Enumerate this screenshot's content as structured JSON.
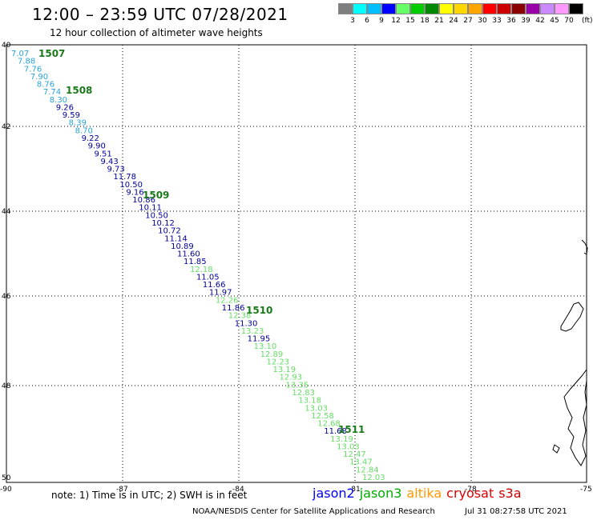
{
  "header": {
    "title": "12:00 – 23:59 UTC 07/28/2021",
    "subtitle": "12 hour collection of altimeter wave heights"
  },
  "colorbar": {
    "colors": [
      "#7f7f7f",
      "#00ffff",
      "#00bfff",
      "#0000ff",
      "#66ff66",
      "#00cc00",
      "#008800",
      "#ffff00",
      "#ffd700",
      "#ffa500",
      "#ff0000",
      "#cc0000",
      "#8b0000",
      "#9900aa",
      "#cc88ff",
      "#ff99ff",
      "#000000"
    ],
    "labels": [
      "3",
      "6",
      "9",
      "12",
      "15",
      "18",
      "21",
      "24",
      "27",
      "30",
      "33",
      "36",
      "39",
      "42",
      "45",
      "70"
    ],
    "unit": "(ft)"
  },
  "map": {
    "lon_ticks": [
      "-90",
      "-87",
      "-84",
      "-81",
      "-78",
      "-75"
    ],
    "lat_ticks": [
      "40",
      "42",
      "44",
      "46",
      "48",
      "50"
    ],
    "pass_labels": [
      "1507",
      "1508",
      "1509",
      "1510",
      "1511"
    ],
    "observations": [
      {
        "v": "7.07",
        "c": "#29a3d6"
      },
      {
        "v": "7.88",
        "c": "#29a3d6"
      },
      {
        "v": "7.76",
        "c": "#29a3d6"
      },
      {
        "v": "7.90",
        "c": "#29a3d6"
      },
      {
        "v": "8.76",
        "c": "#29a3d6"
      },
      {
        "v": "7.74",
        "c": "#29a3d6"
      },
      {
        "v": "8.30",
        "c": "#29a3d6"
      },
      {
        "v": "9.26",
        "c": "#000099"
      },
      {
        "v": "9.59",
        "c": "#000099"
      },
      {
        "v": "8.39",
        "c": "#29a3d6"
      },
      {
        "v": "8.70",
        "c": "#29a3d6"
      },
      {
        "v": "9.22",
        "c": "#000099"
      },
      {
        "v": "9.90",
        "c": "#000099"
      },
      {
        "v": "9.51",
        "c": "#000099"
      },
      {
        "v": "9.43",
        "c": "#000099"
      },
      {
        "v": "9.73",
        "c": "#000099"
      },
      {
        "v": "11.78",
        "c": "#000099"
      },
      {
        "v": "10.50",
        "c": "#000099"
      },
      {
        "v": "9.16",
        "c": "#000099"
      },
      {
        "v": "10.86",
        "c": "#000099"
      },
      {
        "v": "10.11",
        "c": "#000099"
      },
      {
        "v": "10.50",
        "c": "#000099"
      },
      {
        "v": "10.12",
        "c": "#000099"
      },
      {
        "v": "10.72",
        "c": "#000099"
      },
      {
        "v": "11.14",
        "c": "#000099"
      },
      {
        "v": "10.89",
        "c": "#000099"
      },
      {
        "v": "11.60",
        "c": "#000099"
      },
      {
        "v": "11.85",
        "c": "#000099"
      },
      {
        "v": "12.18",
        "c": "#66dd66"
      },
      {
        "v": "11.05",
        "c": "#000099"
      },
      {
        "v": "11.66",
        "c": "#000099"
      },
      {
        "v": "11.97",
        "c": "#000099"
      },
      {
        "v": "12.26",
        "c": "#66dd66"
      },
      {
        "v": "11.86",
        "c": "#000099"
      },
      {
        "v": "12.38",
        "c": "#66dd66"
      },
      {
        "v": "11.30",
        "c": "#000099"
      },
      {
        "v": "13.23",
        "c": "#66dd66"
      },
      {
        "v": "11.95",
        "c": "#000099"
      },
      {
        "v": "13.10",
        "c": "#66dd66"
      },
      {
        "v": "12.89",
        "c": "#66dd66"
      },
      {
        "v": "12.23",
        "c": "#66dd66"
      },
      {
        "v": "13.19",
        "c": "#66dd66"
      },
      {
        "v": "12.93",
        "c": "#66dd66"
      },
      {
        "v": "13.35",
        "c": "#66dd66"
      },
      {
        "v": "12.83",
        "c": "#66dd66"
      },
      {
        "v": "13.18",
        "c": "#66dd66"
      },
      {
        "v": "13.03",
        "c": "#66dd66"
      },
      {
        "v": "12.58",
        "c": "#66dd66"
      },
      {
        "v": "12.68",
        "c": "#66dd66"
      },
      {
        "v": "11.68",
        "c": "#000099"
      },
      {
        "v": "13.19",
        "c": "#66dd66"
      },
      {
        "v": "13.03",
        "c": "#66dd66"
      },
      {
        "v": "12.47",
        "c": "#66dd66"
      },
      {
        "v": "13.47",
        "c": "#66dd66"
      },
      {
        "v": "12.84",
        "c": "#66dd66"
      },
      {
        "v": "12.03",
        "c": "#66dd66"
      }
    ]
  },
  "note": "note: 1) Time is in UTC; 2) SWH is in feet",
  "legend": [
    {
      "name": "jason2",
      "color": "#0000ff"
    },
    {
      "name": "jason3",
      "color": "#00aa00"
    },
    {
      "name": "altika",
      "color": "#ff9900"
    },
    {
      "name": "cryosat",
      "color": "#dd0000"
    },
    {
      "name": "s3a",
      "color": "#cc0000"
    }
  ],
  "footer": {
    "credit": "NOAA/NESDIS Center for Satellite Applications and Research",
    "timestamp": "Jul 31 08:27:58 UTC 2021"
  }
}
